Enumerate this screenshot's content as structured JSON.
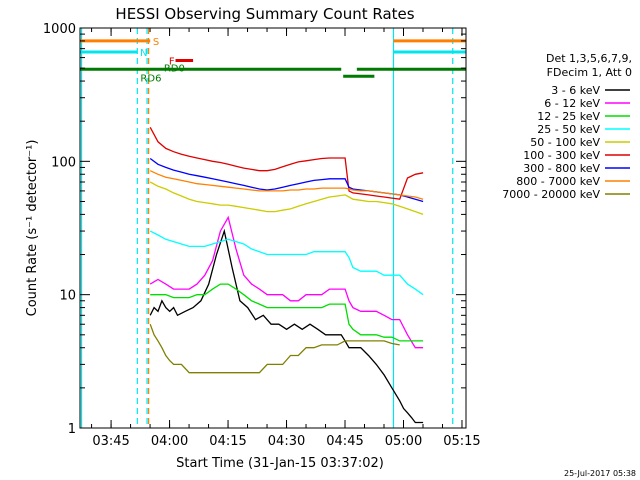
{
  "colors": {
    "frame": "#000000",
    "background": "#ffffff",
    "cyan_markers": "#00e5ee",
    "orange_marker": "#ff8000",
    "red_marker": "#e00000",
    "green_marker": "#007a00"
  },
  "chart_data": {
    "type": "line",
    "title": "HESSI Observing Summary Count Rates",
    "ylabel": "Count Rate (s⁻¹ detector⁻¹)",
    "xlabel": "Start Time (31-Jan-15 03:37:02)",
    "x_unit": "minutes after 03:37:02 (UT)",
    "xlim": [
      0,
      99
    ],
    "ylim": [
      1,
      1000
    ],
    "y_scale": "log",
    "x_ticks": [
      {
        "label": "03:45",
        "x": 7.97
      },
      {
        "label": "04:00",
        "x": 22.97
      },
      {
        "label": "04:15",
        "x": 37.97
      },
      {
        "label": "04:30",
        "x": 52.97
      },
      {
        "label": "04:45",
        "x": 67.97
      },
      {
        "label": "05:00",
        "x": 82.97
      },
      {
        "label": "05:15",
        "x": 97.97
      }
    ],
    "y_ticks": [
      {
        "label": "1",
        "y": 1
      },
      {
        "label": "10",
        "y": 10
      },
      {
        "label": "100",
        "y": 100
      },
      {
        "label": "1000",
        "y": 1000
      }
    ],
    "legend": {
      "position": "right",
      "header": [
        "Det 1,3,5,6,7,9,",
        "FDecim 1, Att 0"
      ]
    },
    "series": [
      {
        "name": "3 - 6 keV",
        "color": "#000000",
        "x": [
          18,
          19,
          20,
          21,
          22,
          23,
          24,
          25,
          27,
          29,
          31,
          33,
          35,
          37,
          39,
          41,
          43,
          45,
          47,
          49,
          51,
          53,
          55,
          57,
          59,
          61,
          63,
          65,
          67,
          68,
          69,
          70,
          72,
          74,
          76,
          78,
          80,
          82,
          83,
          84,
          85,
          86,
          87,
          88
        ],
        "y": [
          7,
          8,
          7.5,
          9,
          8,
          7.5,
          8,
          7,
          7.5,
          8,
          9,
          12,
          20,
          30,
          16,
          9,
          8,
          6.5,
          7,
          6,
          6,
          5.5,
          6,
          5.5,
          6,
          5.5,
          5,
          5,
          5,
          4.5,
          4,
          4,
          4,
          3.5,
          3,
          2.5,
          2,
          1.6,
          1.4,
          1.3,
          1.2,
          1.1,
          1.1,
          1.1
        ]
      },
      {
        "name": "6 - 12 keV",
        "color": "#ff00ff",
        "x": [
          18,
          20,
          22,
          24,
          26,
          28,
          30,
          32,
          34,
          36,
          38,
          40,
          42,
          44,
          46,
          48,
          50,
          52,
          54,
          56,
          58,
          60,
          62,
          64,
          66,
          68,
          69,
          70,
          72,
          74,
          76,
          78,
          80,
          82,
          84,
          86,
          88
        ],
        "y": [
          12,
          13,
          12,
          11,
          11,
          11,
          12,
          14,
          18,
          30,
          38,
          22,
          14,
          12,
          11,
          10,
          10,
          10,
          9,
          9,
          10,
          10,
          10,
          11,
          11,
          11,
          9,
          8,
          7.5,
          7.5,
          7.5,
          7,
          6.5,
          6.5,
          5,
          4,
          4
        ]
      },
      {
        "name": "12 - 25 keV",
        "color": "#00dd00",
        "x": [
          18,
          20,
          22,
          24,
          26,
          28,
          30,
          32,
          34,
          36,
          38,
          40,
          42,
          44,
          46,
          48,
          50,
          52,
          54,
          56,
          58,
          60,
          62,
          64,
          66,
          68,
          69,
          70,
          72,
          74,
          76,
          78,
          80,
          82,
          84,
          86,
          88
        ],
        "y": [
          10,
          10,
          10,
          9.5,
          9.5,
          9.5,
          10,
          10,
          11,
          12,
          12,
          11,
          10,
          9,
          8.5,
          8,
          8,
          8,
          8,
          8,
          8,
          8,
          8,
          8.5,
          8.5,
          8.5,
          6,
          5.5,
          5,
          5,
          5,
          4.8,
          4.8,
          4.5,
          4.5,
          4.5,
          4.5
        ]
      },
      {
        "name": "25 - 50 keV",
        "color": "#00ffff",
        "x": [
          18,
          20,
          22,
          24,
          26,
          28,
          30,
          32,
          34,
          36,
          38,
          40,
          42,
          44,
          46,
          48,
          50,
          52,
          54,
          56,
          58,
          60,
          62,
          64,
          66,
          68,
          69,
          70,
          72,
          74,
          76,
          78,
          80,
          82,
          84,
          86,
          88
        ],
        "y": [
          30,
          28,
          26,
          25,
          24,
          23,
          23,
          23,
          24,
          25,
          26,
          25,
          24,
          22,
          21,
          20,
          20,
          20,
          20,
          20,
          20,
          21,
          21,
          21,
          21,
          21,
          19,
          16,
          15,
          15,
          15,
          14,
          14,
          14,
          12,
          11,
          10
        ]
      },
      {
        "name": "50 - 100 keV",
        "color": "#cccc00",
        "x": [
          18,
          20,
          22,
          24,
          26,
          28,
          30,
          32,
          34,
          36,
          38,
          40,
          42,
          44,
          46,
          48,
          50,
          52,
          54,
          56,
          58,
          60,
          62,
          64,
          66,
          68,
          69,
          70,
          72,
          74,
          76,
          78,
          80,
          82,
          84,
          86,
          88
        ],
        "y": [
          70,
          65,
          62,
          58,
          55,
          52,
          50,
          49,
          48,
          47,
          47,
          46,
          45,
          44,
          43,
          42,
          42,
          43,
          44,
          46,
          48,
          50,
          52,
          54,
          55,
          56,
          54,
          52,
          51,
          50,
          50,
          49,
          48,
          46,
          44,
          42,
          40
        ]
      },
      {
        "name": "100 - 300 keV",
        "color": "#e00000",
        "x": [
          18,
          20,
          22,
          24,
          26,
          28,
          30,
          32,
          34,
          36,
          38,
          40,
          42,
          44,
          46,
          48,
          50,
          52,
          54,
          56,
          58,
          60,
          62,
          64,
          66,
          68,
          69,
          70,
          72,
          74,
          76,
          78,
          80,
          82,
          84,
          86,
          88
        ],
        "y": [
          180,
          140,
          125,
          118,
          113,
          109,
          106,
          103,
          100,
          98,
          95,
          92,
          89,
          87,
          85,
          85,
          87,
          91,
          95,
          99,
          101,
          103,
          105,
          106,
          106,
          106,
          60,
          58,
          57,
          56,
          55,
          54,
          53,
          52,
          75,
          80,
          82
        ]
      },
      {
        "name": "300 - 800 keV",
        "color": "#0000ff",
        "x": [
          18,
          20,
          22,
          24,
          26,
          28,
          30,
          32,
          34,
          36,
          38,
          40,
          42,
          44,
          46,
          48,
          50,
          52,
          54,
          56,
          58,
          60,
          62,
          64,
          66,
          68,
          69,
          70,
          72,
          74,
          76,
          78,
          80,
          82,
          84,
          86,
          88
        ],
        "y": [
          105,
          95,
          90,
          86,
          83,
          80,
          78,
          76,
          74,
          72,
          70,
          68,
          66,
          64,
          62,
          61,
          62,
          64,
          66,
          68,
          70,
          72,
          73,
          74,
          74,
          74,
          64,
          62,
          61,
          60,
          59,
          58,
          57,
          56,
          54,
          52,
          50
        ]
      },
      {
        "name": "800 - 7000 keV",
        "color": "#ff8000",
        "x": [
          18,
          20,
          22,
          24,
          26,
          28,
          30,
          32,
          34,
          36,
          38,
          40,
          42,
          44,
          46,
          48,
          50,
          52,
          54,
          56,
          58,
          60,
          62,
          64,
          66,
          68,
          69,
          70,
          72,
          74,
          76,
          78,
          80,
          82,
          84,
          86,
          88
        ],
        "y": [
          85,
          80,
          76,
          74,
          72,
          70,
          68,
          67,
          66,
          65,
          64,
          63,
          62,
          61,
          60,
          60,
          60,
          60,
          61,
          61,
          62,
          62,
          63,
          63,
          63,
          63,
          62,
          61,
          60,
          60,
          59,
          58,
          57,
          56,
          55,
          54,
          52
        ]
      },
      {
        "name": "7000 - 20000 keV",
        "color": "#808000",
        "x": [
          18,
          19,
          20,
          21,
          22,
          23,
          24,
          26,
          28,
          30,
          32,
          34,
          36,
          38,
          40,
          42,
          44,
          46,
          48,
          50,
          52,
          54,
          56,
          58,
          60,
          62,
          64,
          66,
          68,
          70,
          72,
          74,
          76,
          78,
          80,
          82
        ],
        "y": [
          6,
          5,
          4.5,
          4,
          3.5,
          3.2,
          3,
          3,
          2.6,
          2.6,
          2.6,
          2.6,
          2.6,
          2.6,
          2.6,
          2.6,
          2.6,
          2.6,
          3,
          3,
          3,
          3.5,
          3.5,
          4,
          4,
          4.2,
          4.2,
          4.2,
          4.5,
          4.5,
          4.5,
          4.5,
          4.5,
          4.5,
          4.3,
          4.2
        ]
      }
    ],
    "vertical_lines": [
      {
        "x": 0.4,
        "color": "#00e5ee",
        "style": "solid"
      },
      {
        "x": 14.7,
        "color": "#00e5ee",
        "style": "dashed"
      },
      {
        "x": 17.2,
        "color": "#00e5ee",
        "style": "dashed"
      },
      {
        "x": 17.6,
        "color": "#ff8000",
        "style": "dashed"
      },
      {
        "x": 80.4,
        "color": "#00e5ee",
        "style": "solid"
      },
      {
        "x": 95.6,
        "color": "#00e5ee",
        "style": "dashed"
      }
    ],
    "flag_bars": [
      {
        "label": "S",
        "color": "#ff8000",
        "x0": 0,
        "x1": 18,
        "y": 800,
        "label_x": 18.7
      },
      {
        "label": "N",
        "color": "#00e5ee",
        "x0": 0,
        "x1": 14.7,
        "y": 660,
        "label_x": 15.4
      },
      {
        "label": "F",
        "color": "#e00000",
        "x0": 24.5,
        "x1": 29,
        "y": 570,
        "label_x": 22.8
      },
      {
        "label": "",
        "color": "#007a00",
        "x0": 0,
        "x1": 67,
        "y": 490,
        "label_x": 0
      },
      {
        "label": "",
        "color": "#007a00",
        "x0": 71,
        "x1": 99,
        "y": 490,
        "label_x": 0
      },
      {
        "label": "",
        "color": "#007a00",
        "x0": 67.5,
        "x1": 75.5,
        "y": 435,
        "label_x": 0
      },
      {
        "label": "",
        "color": "#00e5ee",
        "x0": 80.4,
        "x1": 99,
        "y": 660,
        "label_x": 0
      },
      {
        "label": "",
        "color": "#ff8000",
        "x0": 80.4,
        "x1": 99,
        "y": 800,
        "label_x": 0
      }
    ],
    "flag_labels": [
      {
        "text": "RD0",
        "x": 21.5,
        "y": 505,
        "color": "#007a00"
      },
      {
        "text": "RD6",
        "x": 15.5,
        "y": 425,
        "color": "#007a00"
      }
    ],
    "timestamp": "25-Jul-2017 05:38"
  }
}
